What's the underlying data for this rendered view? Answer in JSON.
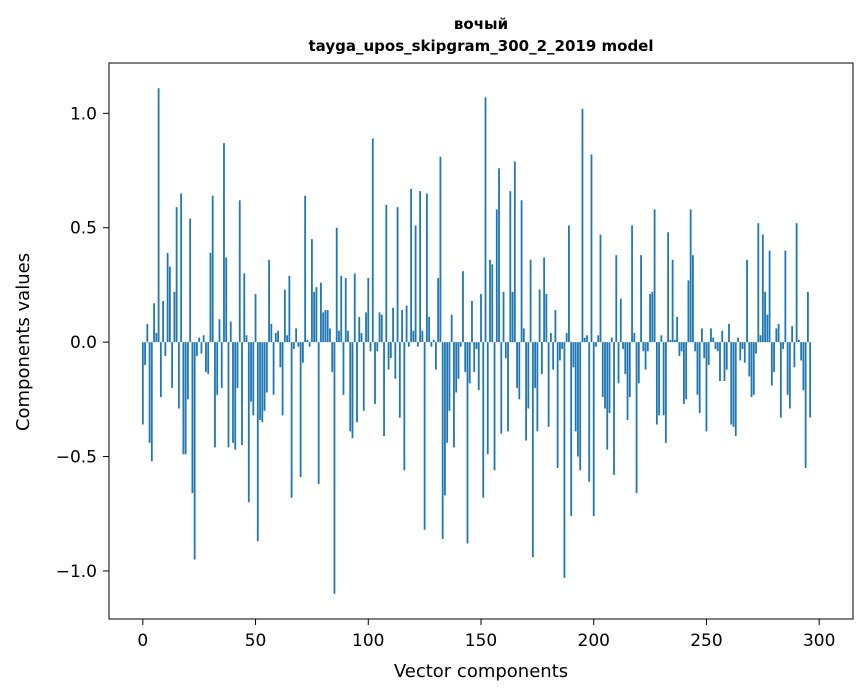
{
  "chart_data": {
    "type": "bar",
    "title": "вочый",
    "subtitle": "tayga_upos_skipgram_300_2_2019 model",
    "xlabel": "Vector components",
    "ylabel": "Components values",
    "xlim": [
      -15,
      315
    ],
    "ylim": [
      -1.21,
      1.22
    ],
    "x_ticks": [
      0,
      50,
      100,
      150,
      200,
      250,
      300
    ],
    "x_tick_labels": [
      "0",
      "50",
      "100",
      "150",
      "200",
      "250",
      "300"
    ],
    "y_ticks": [
      1.0,
      0.5,
      0.0,
      -0.5,
      -1.0
    ],
    "y_tick_labels": [
      "1.0",
      "0.5",
      "0.0",
      "−0.5",
      "−1.0"
    ],
    "grid": false,
    "bar_color": "#1f77b4",
    "values": [
      -0.36,
      -0.1,
      0.08,
      -0.44,
      -0.52,
      0.17,
      0.04,
      1.11,
      -0.24,
      0.18,
      -0.06,
      0.39,
      0.33,
      -0.2,
      0.22,
      0.59,
      -0.29,
      0.65,
      -0.49,
      -0.49,
      -0.25,
      0.54,
      -0.66,
      -0.95,
      -0.06,
      0.02,
      -0.05,
      0.03,
      -0.13,
      -0.14,
      0.39,
      0.64,
      -0.46,
      -0.23,
      0.1,
      -0.2,
      0.87,
      0.37,
      -0.46,
      0.09,
      -0.44,
      -0.47,
      -0.2,
      0.62,
      -0.45,
      0.3,
      0.03,
      -0.7,
      -0.26,
      -0.32,
      0.21,
      -0.87,
      -0.34,
      -0.35,
      -0.3,
      -0.22,
      0.36,
      0.08,
      -0.23,
      0.04,
      0.05,
      -0.11,
      -0.32,
      0.23,
      0.03,
      0.29,
      -0.68,
      -0.03,
      0.06,
      -0.02,
      -0.59,
      -0.09,
      0.64,
      0.01,
      -0.02,
      0.45,
      0.22,
      0.24,
      -0.62,
      0.26,
      0.13,
      0.14,
      0.14,
      0.06,
      -0.13,
      -1.1,
      0.5,
      0.05,
      0.29,
      -0.23,
      0.28,
      0.05,
      -0.39,
      -0.42,
      0.3,
      -0.35,
      0.11,
      0.04,
      -0.3,
      0.13,
      0.28,
      -0.04,
      0.89,
      -0.27,
      -0.04,
      0.13,
      0.12,
      -0.41,
      0.6,
      -0.12,
      -0.07,
      0.15,
      -0.16,
      0.59,
      -0.33,
      0.14,
      -0.56,
      0.16,
      -0.02,
      0.67,
      0.05,
      0.51,
      -0.02,
      0.66,
      0.05,
      -0.82,
      0.65,
      0.11,
      -0.02,
      0.01,
      -0.12,
      0.28,
      0.81,
      -0.86,
      -0.67,
      -0.44,
      -0.3,
      0.12,
      -0.46,
      -0.22,
      -0.16,
      -0.02,
      0.31,
      -0.13,
      -0.88,
      -0.18,
      0.18,
      -0.13,
      -0.03,
      -0.21,
      0.21,
      -0.68,
      1.07,
      -0.49,
      0.36,
      0.34,
      -0.56,
      0.58,
      0.76,
      -0.4,
      0.22,
      -0.07,
      -0.39,
      0.66,
      0.22,
      0.79,
      -0.2,
      -0.25,
      0.62,
      0.06,
      -0.43,
      -0.29,
      0.36,
      -0.94,
      -0.2,
      -0.39,
      0.23,
      -0.14,
      0.37,
      0.21,
      -0.37,
      0.04,
      -0.12,
      0.14,
      -0.55,
      -0.08,
      -0.03,
      -1.03,
      0.04,
      0.51,
      -0.76,
      -0.11,
      -0.39,
      -0.5,
      -0.56,
      1.02,
      0.02,
      0.03,
      -0.61,
      0.82,
      -0.76,
      -0.02,
      0.03,
      0.47,
      -0.24,
      -0.29,
      -0.47,
      -0.31,
      0.02,
      -0.58,
      0.38,
      -0.18,
      0.19,
      -0.03,
      -0.14,
      -0.34,
      -0.24,
      0.51,
      0.04,
      -0.66,
      -0.18,
      0.38,
      -0.04,
      -0.12,
      -0.04,
      0.21,
      0.22,
      0.58,
      -0.36,
      -0.32,
      0.03,
      -0.32,
      -0.44,
      0.48,
      0.01,
      0.36,
      0.01,
      0.11,
      -0.06,
      -0.04,
      -0.27,
      -0.25,
      0.27,
      0.58,
      0.38,
      -0.04,
      -0.23,
      -0.31,
      0.06,
      -0.07,
      -0.39,
      -0.1,
      0.06,
      0.02,
      -0.03,
      -0.04,
      -0.17,
      0.05,
      -0.17,
      -0.12,
      0.08,
      -0.36,
      -0.37,
      -0.41,
      0.02,
      -0.08,
      -0.03,
      -0.09,
      0.36,
      -0.15,
      -0.24,
      -0.23,
      -0.05,
      0.52,
      0.03,
      0.47,
      0.22,
      0.12,
      0.4,
      -0.19,
      -0.13,
      0.06,
      0.08,
      -0.33,
      -0.03,
      0.4,
      -0.23,
      -0.29,
      0.07,
      -0.11,
      0.52,
      0.01,
      -0.08,
      -0.21,
      -0.55,
      0.22,
      -0.33
    ],
    "axis_range": {
      "x": [
        -15,
        315
      ],
      "y": [
        -1.21,
        1.22
      ]
    }
  }
}
